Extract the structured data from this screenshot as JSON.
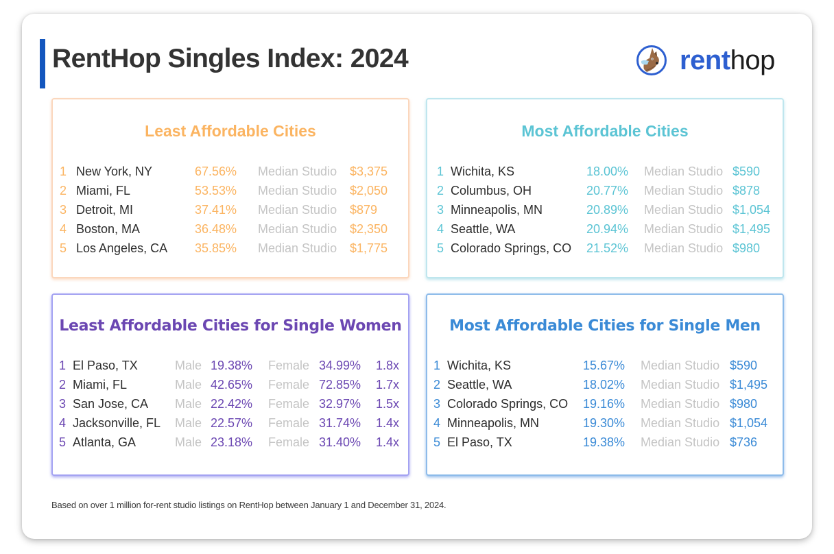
{
  "header": {
    "title": "RentHop Singles Index: 2024",
    "accent_color": "#1356be"
  },
  "logo": {
    "icon": "kangaroo-mascot-icon",
    "word_bold": "rent",
    "word_light": "hop"
  },
  "panels": {
    "least_affordable": {
      "title": "Least Affordable Cities",
      "color": "#fbb461",
      "rows": [
        {
          "rank": "1",
          "city": "New York, NY",
          "pct": "67.56%",
          "label": "Median Studio",
          "value": "$3,375"
        },
        {
          "rank": "2",
          "city": "Miami, FL",
          "pct": "53.53%",
          "label": "Median Studio",
          "value": "$2,050"
        },
        {
          "rank": "3",
          "city": "Detroit, MI",
          "pct": "37.41%",
          "label": "Median Studio",
          "value": "$879"
        },
        {
          "rank": "4",
          "city": "Boston, MA",
          "pct": "36.48%",
          "label": "Median Studio",
          "value": "$2,350"
        },
        {
          "rank": "5",
          "city": "Los Angeles, CA",
          "pct": "35.85%",
          "label": "Median Studio",
          "value": "$1,775"
        }
      ]
    },
    "most_affordable": {
      "title": "Most Affordable Cities",
      "color": "#5bc4d4",
      "rows": [
        {
          "rank": "1",
          "city": "Wichita, KS",
          "pct": "18.00%",
          "label": "Median Studio",
          "value": "$590"
        },
        {
          "rank": "2",
          "city": "Columbus, OH",
          "pct": "20.77%",
          "label": "Median Studio",
          "value": "$878"
        },
        {
          "rank": "3",
          "city": "Minneapolis, MN",
          "pct": "20.89%",
          "label": "Median Studio",
          "value": "$1,054"
        },
        {
          "rank": "4",
          "city": "Seattle, WA",
          "pct": "20.94%",
          "label": "Median Studio",
          "value": "$1,495"
        },
        {
          "rank": "5",
          "city": "Colorado Springs, CO",
          "pct": "21.52%",
          "label": "Median Studio",
          "value": "$980"
        }
      ]
    },
    "least_women": {
      "title": "Least Affordable Cities for Single Women",
      "color": "#6b47b2",
      "rows": [
        {
          "rank": "1",
          "city": "El Paso, TX",
          "male_label": "Male",
          "male": "19.38%",
          "female_label": "Female",
          "female": "34.99%",
          "ratio": "1.8x"
        },
        {
          "rank": "2",
          "city": "Miami, FL",
          "male_label": "Male",
          "male": "42.65%",
          "female_label": "Female",
          "female": "72.85%",
          "ratio": "1.7x"
        },
        {
          "rank": "3",
          "city": "San Jose, CA",
          "male_label": "Male",
          "male": "22.42%",
          "female_label": "Female",
          "female": "32.97%",
          "ratio": "1.5x"
        },
        {
          "rank": "4",
          "city": "Jacksonville, FL",
          "male_label": "Male",
          "male": "22.57%",
          "female_label": "Female",
          "female": "31.74%",
          "ratio": "1.4x"
        },
        {
          "rank": "5",
          "city": "Atlanta, GA",
          "male_label": "Male",
          "male": "23.18%",
          "female_label": "Female",
          "female": "31.40%",
          "ratio": "1.4x"
        }
      ]
    },
    "most_men": {
      "title": "Most Affordable Cities for Single Men",
      "color": "#3a8ad6",
      "rows": [
        {
          "rank": "1",
          "city": "Wichita, KS",
          "pct": "15.67%",
          "label": "Median Studio",
          "value": "$590"
        },
        {
          "rank": "2",
          "city": "Seattle, WA",
          "pct": "18.02%",
          "label": "Median Studio",
          "value": "$1,495"
        },
        {
          "rank": "3",
          "city": "Colorado Springs, CO",
          "pct": "19.16%",
          "label": "Median Studio",
          "value": "$980"
        },
        {
          "rank": "4",
          "city": "Minneapolis, MN",
          "pct": "19.30%",
          "label": "Median Studio",
          "value": "$1,054"
        },
        {
          "rank": "5",
          "city": "El Paso, TX",
          "pct": "19.38%",
          "label": "Median Studio",
          "value": "$736"
        }
      ]
    }
  },
  "footnote": "Based on over 1 million for-rent studio listings on RentHop between January 1 and December 31, 2024."
}
